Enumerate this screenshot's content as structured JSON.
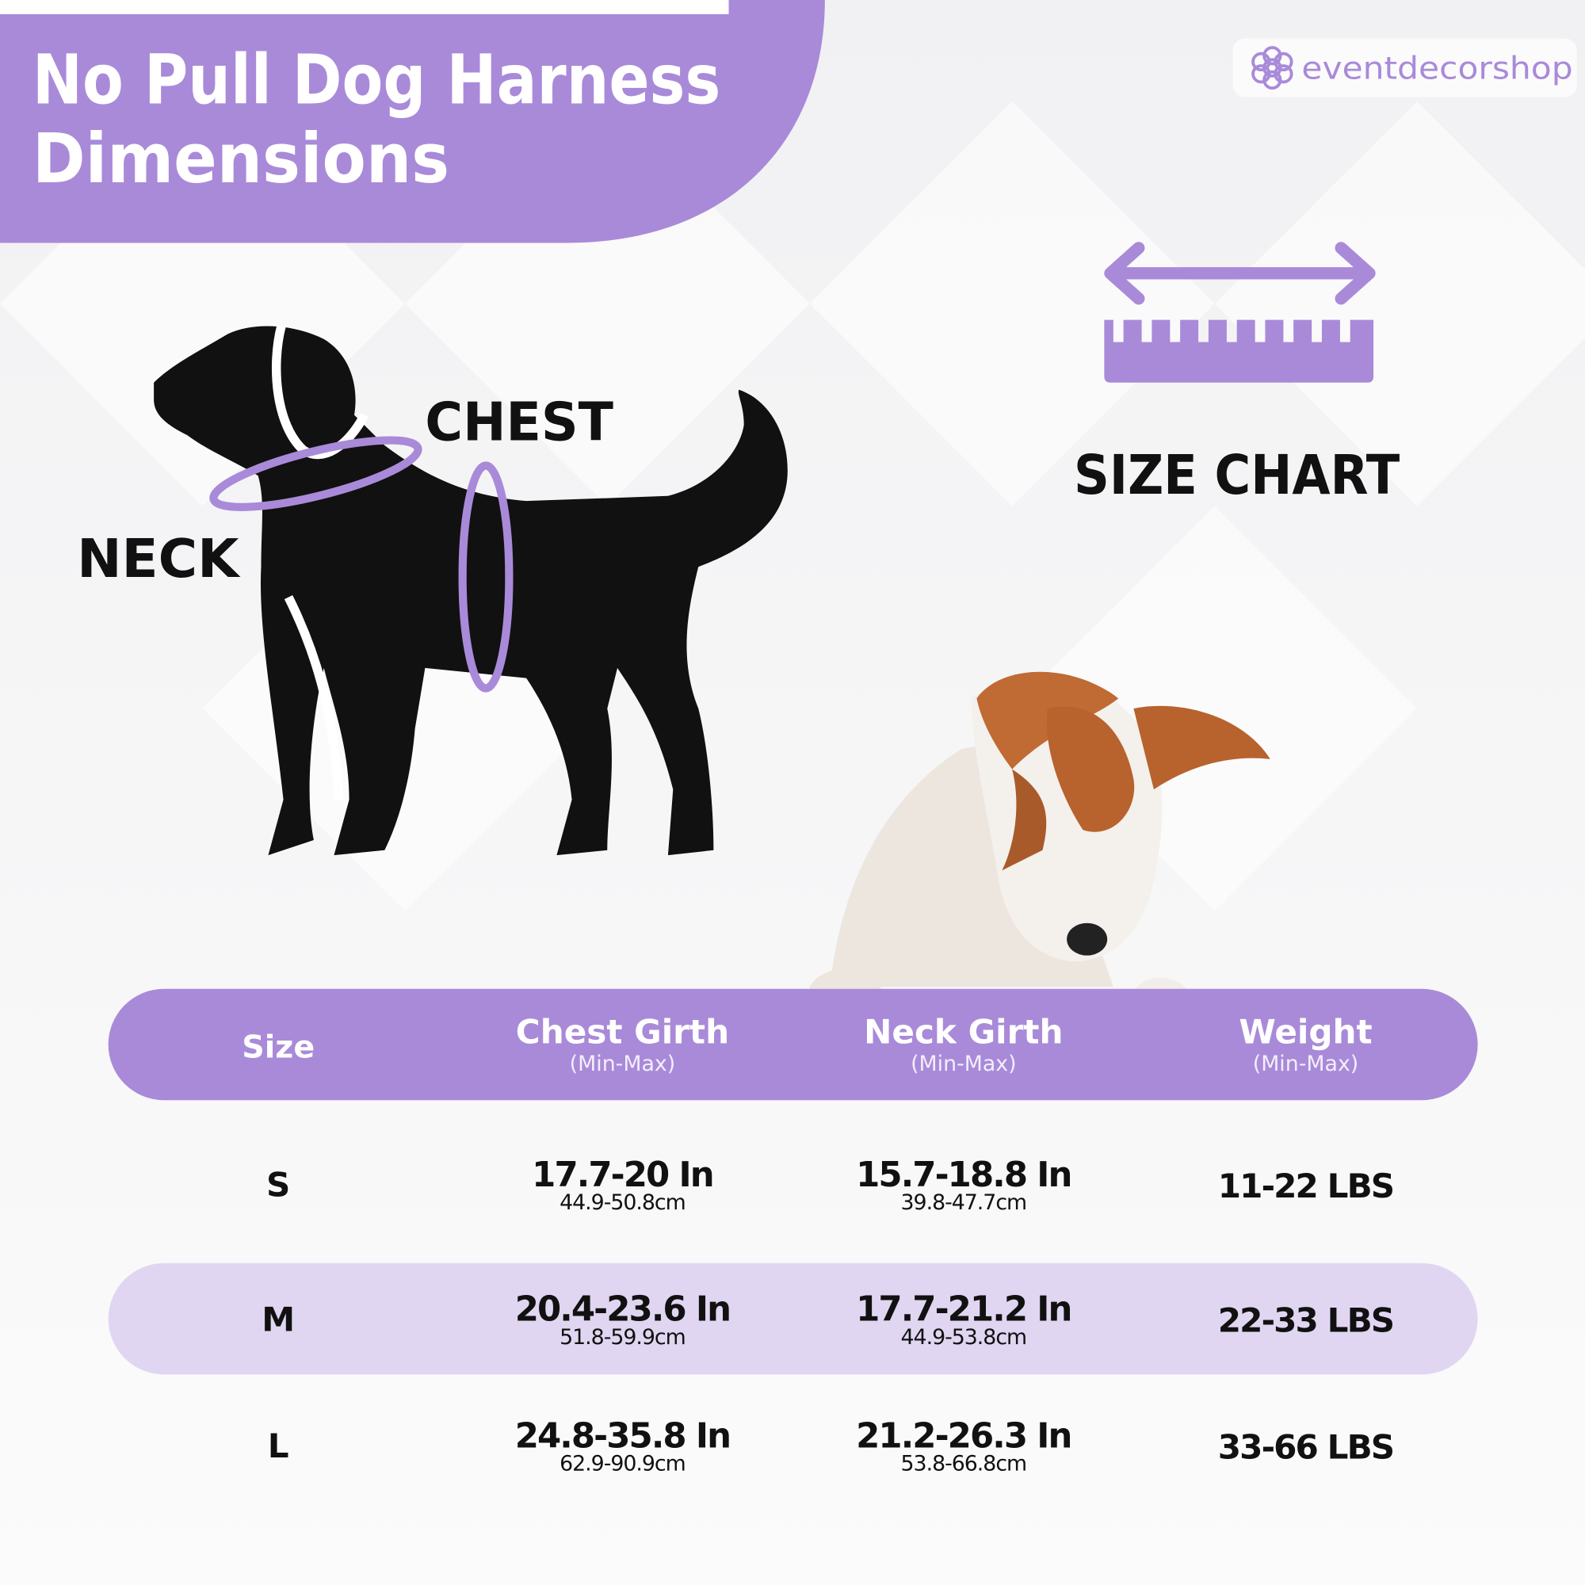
{
  "header": {
    "title_lines": [
      "No Pull Dog Harness",
      "Dimensions"
    ]
  },
  "brand": "eventdecorshop",
  "diagram": {
    "neck_label": "NECK",
    "chest_label": "CHEST",
    "size_chart_label": "SIZE CHART"
  },
  "table": {
    "headers": [
      {
        "title": "Size"
      },
      {
        "title": "Chest Girth",
        "note": "(Min-Max)"
      },
      {
        "title": "Neck Girth",
        "note": "(Min-Max)"
      },
      {
        "title": "Weight",
        "note": "(Min-Max)"
      }
    ],
    "rows": [
      {
        "size": "S",
        "chest": {
          "in": "17.7-20 In",
          "cm": "44.9-50.8cm"
        },
        "neck": {
          "in": "15.7-18.8 In",
          "cm": "39.8-47.7cm"
        },
        "weight": "11-22 LBS"
      },
      {
        "size": "M",
        "chest": {
          "in": "20.4-23.6 In",
          "cm": "51.8-59.9cm"
        },
        "neck": {
          "in": "17.7-21.2 In",
          "cm": "44.9-53.8cm"
        },
        "weight": "22-33 LBS"
      },
      {
        "size": "L",
        "chest": {
          "in": "24.8-35.8 In",
          "cm": "62.9-90.9cm"
        },
        "neck": {
          "in": "21.2-26.3 In",
          "cm": "53.8-66.8cm"
        },
        "weight": "33-66 LBS"
      }
    ]
  }
}
